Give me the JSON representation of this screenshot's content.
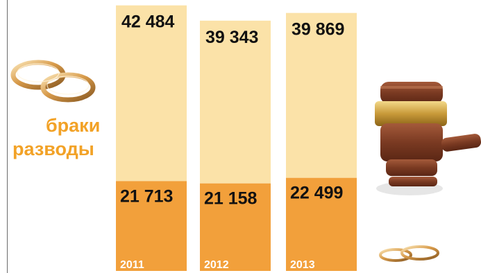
{
  "chart_data": {
    "type": "bar",
    "stacked": true,
    "categories": [
      "2011",
      "2012",
      "2013"
    ],
    "series": [
      {
        "name": "разводы",
        "values": [
          21713,
          21158,
          22499
        ],
        "color": "#f2a03b",
        "labels": [
          "21 713",
          "21 158",
          "22 499"
        ]
      },
      {
        "name": "браки",
        "values": [
          42484,
          39343,
          39869
        ],
        "color": "#fbe2a8",
        "labels": [
          "42 484",
          "39 343",
          "39 869"
        ]
      }
    ],
    "legend": {
      "position": "left",
      "entries": [
        "браки",
        "разводы"
      ]
    },
    "accent_color": "#f2a227",
    "icons": [
      "wedding-rings-icon",
      "gavel-icon",
      "small-wedding-rings-icon"
    ]
  }
}
